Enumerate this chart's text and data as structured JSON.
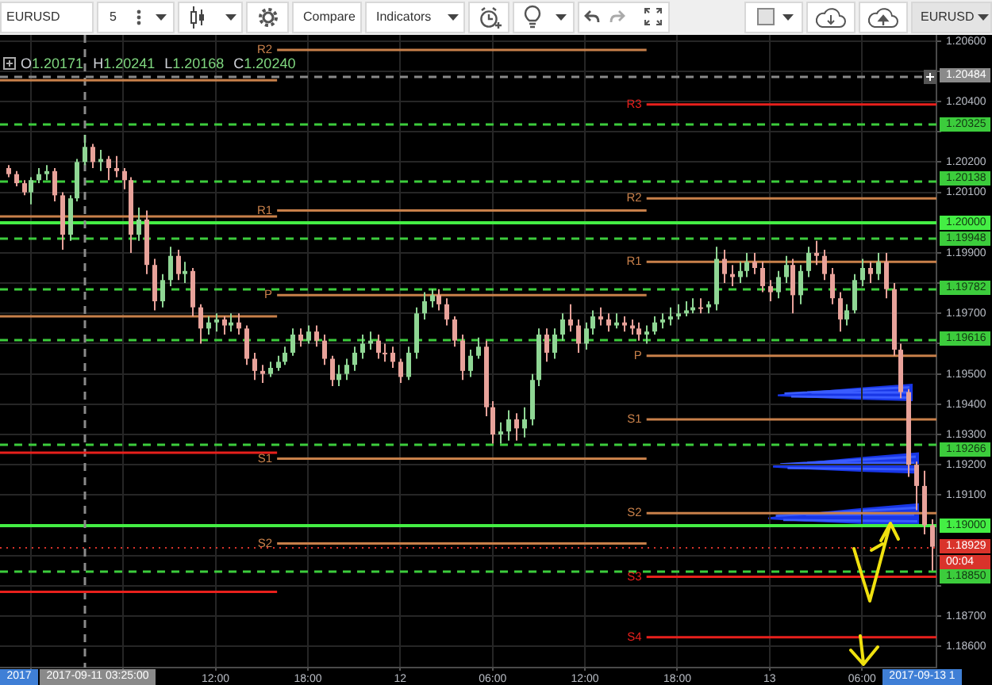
{
  "chart_data": {
    "type": "candlestick",
    "title": "EURUSD",
    "annotations": [
      "5",
      "Compare",
      "Indicators",
      "EURUSD",
      "O1.20171",
      "H1.20241",
      "L1.20168",
      "C1.20240",
      "00:04",
      "2017",
      "2017-09-13 1"
    ],
    "x": [
      "2017-09-10T22:30",
      "2017-09-10T23:00",
      "2017-09-10T23:30",
      "2017-09-11T00:00",
      "2017-09-11T00:30",
      "2017-09-11T01:00",
      "2017-09-11T01:30",
      "2017-09-11T02:00",
      "2017-09-11T02:30",
      "2017-09-11T03:00",
      "2017-09-11T03:30",
      "2017-09-11T04:00",
      "2017-09-11T04:30",
      "2017-09-11T05:00",
      "2017-09-11T05:30",
      "2017-09-11T06:00",
      "2017-09-11T06:30",
      "2017-09-11T07:00",
      "2017-09-11T07:30",
      "2017-09-11T08:00",
      "2017-09-11T08:30",
      "2017-09-11T09:00",
      "2017-09-11T09:30",
      "2017-09-11T10:00",
      "2017-09-11T10:30",
      "2017-09-11T11:00",
      "2017-09-11T11:30",
      "2017-09-11T12:00",
      "2017-09-11T12:30",
      "2017-09-11T13:00",
      "2017-09-11T13:30",
      "2017-09-11T14:00",
      "2017-09-11T14:30",
      "2017-09-11T15:00",
      "2017-09-11T15:30",
      "2017-09-11T16:00",
      "2017-09-11T16:30",
      "2017-09-11T17:00",
      "2017-09-11T17:30",
      "2017-09-11T18:00",
      "2017-09-11T18:30",
      "2017-09-11T19:00",
      "2017-09-11T19:30",
      "2017-09-11T20:00",
      "2017-09-11T20:30",
      "2017-09-11T21:00",
      "2017-09-11T21:30",
      "2017-09-11T22:00",
      "2017-09-11T22:30",
      "2017-09-11T23:00",
      "2017-09-11T23:30",
      "2017-09-12T00:00",
      "2017-09-12T00:30",
      "2017-09-12T01:00",
      "2017-09-12T01:30",
      "2017-09-12T02:00",
      "2017-09-12T02:30",
      "2017-09-12T03:00",
      "2017-09-12T03:30",
      "2017-09-12T04:00",
      "2017-09-12T04:30",
      "2017-09-12T05:00",
      "2017-09-12T05:30",
      "2017-09-12T06:00",
      "2017-09-12T06:30",
      "2017-09-12T07:00",
      "2017-09-12T07:30",
      "2017-09-12T08:00",
      "2017-09-12T08:30",
      "2017-09-12T09:00",
      "2017-09-12T09:30",
      "2017-09-12T10:00",
      "2017-09-12T10:30",
      "2017-09-12T11:00",
      "2017-09-12T11:30",
      "2017-09-12T12:00",
      "2017-09-12T12:30",
      "2017-09-12T13:00",
      "2017-09-12T13:30",
      "2017-09-12T14:00",
      "2017-09-12T14:30",
      "2017-09-12T15:00",
      "2017-09-12T15:30",
      "2017-09-12T16:00",
      "2017-09-12T16:30",
      "2017-09-12T17:00",
      "2017-09-12T17:30",
      "2017-09-12T18:00",
      "2017-09-12T18:30",
      "2017-09-12T19:00",
      "2017-09-12T19:30",
      "2017-09-12T20:00",
      "2017-09-12T20:30",
      "2017-09-12T21:00",
      "2017-09-12T21:30",
      "2017-09-12T22:00",
      "2017-09-12T22:30",
      "2017-09-12T23:00",
      "2017-09-12T23:30",
      "2017-09-13T00:00",
      "2017-09-13T00:30",
      "2017-09-13T01:00",
      "2017-09-13T01:30",
      "2017-09-13T02:00",
      "2017-09-13T02:30",
      "2017-09-13T03:00",
      "2017-09-13T03:30",
      "2017-09-13T04:00",
      "2017-09-13T04:30",
      "2017-09-13T05:00",
      "2017-09-13T05:30",
      "2017-09-13T06:00",
      "2017-09-13T06:30",
      "2017-09-13T07:00",
      "2017-09-13T07:30",
      "2017-09-13T08:00",
      "2017-09-13T08:30",
      "2017-09-13T09:00",
      "2017-09-13T09:30",
      "2017-09-13T10:00",
      "2017-09-13T10:30"
    ],
    "ohlc": [
      [
        1.2018,
        1.2019,
        1.2015,
        1.2016
      ],
      [
        1.2016,
        1.2017,
        1.2012,
        1.2013
      ],
      [
        1.2013,
        1.2014,
        1.2009,
        1.201
      ],
      [
        1.201,
        1.2015,
        1.2006,
        1.2014
      ],
      [
        1.2014,
        1.2018,
        1.2013,
        1.2016
      ],
      [
        1.2016,
        1.2019,
        1.2014,
        1.2017
      ],
      [
        1.2017,
        1.2018,
        1.2007,
        1.2009
      ],
      [
        1.2009,
        1.201,
        1.1991,
        1.1996
      ],
      [
        1.1996,
        1.2009,
        1.1994,
        1.2008
      ],
      [
        1.2008,
        1.2021,
        1.2007,
        1.202
      ],
      [
        1.202,
        1.2029,
        1.2019,
        1.2025
      ],
      [
        1.2025,
        1.2026,
        1.2018,
        1.202
      ],
      [
        1.202,
        1.2024,
        1.2017,
        1.2021
      ],
      [
        1.2021,
        1.2022,
        1.2014,
        1.2018
      ],
      [
        1.2018,
        1.2022,
        1.2015,
        1.2017
      ],
      [
        1.2017,
        1.2018,
        1.2011,
        1.2014
      ],
      [
        1.2014,
        1.2015,
        1.199,
        1.1996
      ],
      [
        1.1996,
        1.2005,
        1.1994,
        1.2001
      ],
      [
        1.2001,
        1.2004,
        1.1983,
        1.1986
      ],
      [
        1.1986,
        1.1988,
        1.1971,
        1.1974
      ],
      [
        1.1974,
        1.1983,
        1.1972,
        1.1981
      ],
      [
        1.1981,
        1.1992,
        1.1979,
        1.1989
      ],
      [
        1.1989,
        1.1991,
        1.1981,
        1.1983
      ],
      [
        1.1983,
        1.1987,
        1.198,
        1.1984
      ],
      [
        1.1984,
        1.1985,
        1.1969,
        1.1972
      ],
      [
        1.1972,
        1.1973,
        1.196,
        1.1965
      ],
      [
        1.1965,
        1.1969,
        1.1963,
        1.1967
      ],
      [
        1.1967,
        1.197,
        1.1964,
        1.1968
      ],
      [
        1.1968,
        1.1969,
        1.1963,
        1.1966
      ],
      [
        1.1966,
        1.197,
        1.1964,
        1.1967
      ],
      [
        1.1967,
        1.197,
        1.1963,
        1.1965
      ],
      [
        1.1965,
        1.1966,
        1.1953,
        1.1955
      ],
      [
        1.1955,
        1.1957,
        1.1948,
        1.1951
      ],
      [
        1.1951,
        1.1953,
        1.1947,
        1.195
      ],
      [
        1.195,
        1.1954,
        1.1949,
        1.1952
      ],
      [
        1.1952,
        1.1956,
        1.1951,
        1.1954
      ],
      [
        1.1954,
        1.1959,
        1.1953,
        1.1957
      ],
      [
        1.1957,
        1.1965,
        1.1956,
        1.1963
      ],
      [
        1.1963,
        1.1965,
        1.1959,
        1.1961
      ],
      [
        1.1961,
        1.1966,
        1.196,
        1.1964
      ],
      [
        1.1964,
        1.1966,
        1.1959,
        1.1961
      ],
      [
        1.1961,
        1.1963,
        1.1953,
        1.1955
      ],
      [
        1.1955,
        1.1956,
        1.1946,
        1.1948
      ],
      [
        1.1948,
        1.1953,
        1.1946,
        1.195
      ],
      [
        1.195,
        1.1955,
        1.1948,
        1.1953
      ],
      [
        1.1953,
        1.1959,
        1.1951,
        1.1957
      ],
      [
        1.1957,
        1.1963,
        1.1955,
        1.196
      ],
      [
        1.196,
        1.1964,
        1.1958,
        1.1961
      ],
      [
        1.1961,
        1.1963,
        1.1955,
        1.1957
      ],
      [
        1.1957,
        1.196,
        1.1954,
        1.1957
      ],
      [
        1.1957,
        1.1959,
        1.1952,
        1.1954
      ],
      [
        1.1954,
        1.1955,
        1.1947,
        1.1949
      ],
      [
        1.1949,
        1.1959,
        1.1948,
        1.1957
      ],
      [
        1.1957,
        1.1972,
        1.1955,
        1.197
      ],
      [
        1.197,
        1.1977,
        1.1968,
        1.1974
      ],
      [
        1.1974,
        1.1978,
        1.1972,
        1.1976
      ],
      [
        1.1976,
        1.1978,
        1.1971,
        1.1973
      ],
      [
        1.1973,
        1.1975,
        1.1966,
        1.1968
      ],
      [
        1.1968,
        1.1969,
        1.1959,
        1.1961
      ],
      [
        1.1961,
        1.1963,
        1.1948,
        1.1951
      ],
      [
        1.1951,
        1.1958,
        1.1949,
        1.1956
      ],
      [
        1.1956,
        1.1962,
        1.1955,
        1.1959
      ],
      [
        1.1959,
        1.1961,
        1.1936,
        1.1939
      ],
      [
        1.1939,
        1.1941,
        1.1927,
        1.193
      ],
      [
        1.193,
        1.1934,
        1.1927,
        1.1931
      ],
      [
        1.1931,
        1.1938,
        1.1928,
        1.1935
      ],
      [
        1.1935,
        1.1937,
        1.1928,
        1.1932
      ],
      [
        1.1932,
        1.1939,
        1.1929,
        1.1935
      ],
      [
        1.1935,
        1.195,
        1.1933,
        1.1948
      ],
      [
        1.1948,
        1.1965,
        1.1946,
        1.1963
      ],
      [
        1.1963,
        1.1965,
        1.1954,
        1.1957
      ],
      [
        1.1957,
        1.1965,
        1.1955,
        1.1963
      ],
      [
        1.1963,
        1.197,
        1.1961,
        1.1968
      ],
      [
        1.1968,
        1.1973,
        1.1964,
        1.1966
      ],
      [
        1.1966,
        1.1968,
        1.1957,
        1.196
      ],
      [
        1.196,
        1.1967,
        1.1958,
        1.1965
      ],
      [
        1.1965,
        1.1971,
        1.1963,
        1.1969
      ],
      [
        1.1969,
        1.1972,
        1.1966,
        1.1968
      ],
      [
        1.1968,
        1.197,
        1.1964,
        1.1966
      ],
      [
        1.1966,
        1.197,
        1.1965,
        1.1967
      ],
      [
        1.1967,
        1.1969,
        1.1964,
        1.1966
      ],
      [
        1.1966,
        1.1968,
        1.1963,
        1.1965
      ],
      [
        1.1965,
        1.1967,
        1.1961,
        1.1963
      ],
      [
        1.1963,
        1.1966,
        1.196,
        1.1964
      ],
      [
        1.1964,
        1.1969,
        1.1963,
        1.1967
      ],
      [
        1.1967,
        1.197,
        1.1965,
        1.1968
      ],
      [
        1.1968,
        1.1972,
        1.1966,
        1.1969
      ],
      [
        1.1969,
        1.1973,
        1.1968,
        1.197
      ],
      [
        1.197,
        1.1974,
        1.1969,
        1.1971
      ],
      [
        1.1971,
        1.1975,
        1.197,
        1.1972
      ],
      [
        1.1972,
        1.1975,
        1.197,
        1.1972
      ],
      [
        1.1972,
        1.1974,
        1.197,
        1.1973
      ],
      [
        1.1973,
        1.1992,
        1.1971,
        1.1988
      ],
      [
        1.1988,
        1.1991,
        1.198,
        1.1983
      ],
      [
        1.1983,
        1.1986,
        1.1979,
        1.1982
      ],
      [
        1.1982,
        1.1987,
        1.198,
        1.1984
      ],
      [
        1.1984,
        1.199,
        1.1982,
        1.1987
      ],
      [
        1.1987,
        1.199,
        1.1983,
        1.1985
      ],
      [
        1.1985,
        1.1987,
        1.1977,
        1.1979
      ],
      [
        1.1979,
        1.1981,
        1.1974,
        1.1977
      ],
      [
        1.1977,
        1.1984,
        1.1975,
        1.1982
      ],
      [
        1.1982,
        1.1989,
        1.198,
        1.1986
      ],
      [
        1.1986,
        1.1988,
        1.197,
        1.1976
      ],
      [
        1.1976,
        1.1986,
        1.1973,
        1.1984
      ],
      [
        1.1984,
        1.1992,
        1.1982,
        1.199
      ],
      [
        1.199,
        1.1994,
        1.1986,
        1.1989
      ],
      [
        1.1989,
        1.1991,
        1.1981,
        1.1983
      ],
      [
        1.1983,
        1.1985,
        1.1973,
        1.1975
      ],
      [
        1.1975,
        1.1977,
        1.1964,
        1.1968
      ],
      [
        1.1968,
        1.1973,
        1.1966,
        1.1971
      ],
      [
        1.1971,
        1.1983,
        1.197,
        1.1981
      ],
      [
        1.1981,
        1.1988,
        1.1979,
        1.1985
      ],
      [
        1.1985,
        1.1987,
        1.198,
        1.1983
      ],
      [
        1.1983,
        1.199,
        1.1981,
        1.1987
      ],
      [
        1.1987,
        1.199,
        1.1975,
        1.1978
      ],
      [
        1.1978,
        1.198,
        1.1956,
        1.1958
      ],
      [
        1.1958,
        1.196,
        1.1942,
        1.1944
      ],
      [
        1.1944,
        1.1945,
        1.1916,
        1.192
      ],
      [
        1.192,
        1.1921,
        1.1905,
        1.1913
      ],
      [
        1.1913,
        1.1918,
        1.1897,
        1.19
      ],
      [
        1.19,
        1.1902,
        1.1885,
        1.18929
      ]
    ],
    "colors": [
      "#e8a29a",
      "#e8a29a",
      "#e8a29a",
      "#8fd694",
      "#8fd694",
      "#8fd694",
      "#e8a29a",
      "#e8a29a",
      "#8fd694",
      "#8fd694",
      "#8fd694",
      "#e8a29a",
      "#8fd694",
      "#e8a29a",
      "#e8a29a",
      "#e8a29a",
      "#e8a29a",
      "#8fd694",
      "#e8a29a",
      "#e8a29a",
      "#8fd694",
      "#8fd694",
      "#e8a29a",
      "#8fd694",
      "#e8a29a",
      "#e8a29a",
      "#8fd694",
      "#8fd694",
      "#e8a29a",
      "#8fd694",
      "#e8a29a",
      "#e8a29a",
      "#e8a29a",
      "#e8a29a",
      "#8fd694",
      "#8fd694",
      "#8fd694",
      "#8fd694",
      "#e8a29a",
      "#8fd694",
      "#e8a29a",
      "#e8a29a",
      "#e8a29a",
      "#8fd694",
      "#8fd694",
      "#8fd694",
      "#8fd694",
      "#8fd694",
      "#e8a29a",
      "#e8a29a",
      "#e8a29a",
      "#e8a29a",
      "#8fd694",
      "#8fd694",
      "#8fd694",
      "#8fd694",
      "#e8a29a",
      "#e8a29a",
      "#e8a29a",
      "#e8a29a",
      "#8fd694",
      "#8fd694",
      "#e8a29a",
      "#e8a29a",
      "#8fd694",
      "#8fd694",
      "#e8a29a",
      "#8fd694",
      "#8fd694",
      "#8fd694",
      "#e8a29a",
      "#8fd694",
      "#8fd694",
      "#e8a29a",
      "#e8a29a",
      "#8fd694",
      "#8fd694",
      "#e8a29a",
      "#e8a29a",
      "#8fd694",
      "#e8a29a",
      "#e8a29a",
      "#e8a29a",
      "#8fd694",
      "#8fd694",
      "#8fd694",
      "#8fd694",
      "#8fd694",
      "#8fd694",
      "#8fd694",
      "#e8a29a",
      "#8fd694",
      "#8fd694",
      "#e8a29a",
      "#e8a29a",
      "#8fd694",
      "#8fd694",
      "#e8a29a",
      "#e8a29a",
      "#e8a29a",
      "#8fd694",
      "#8fd694",
      "#e8a29a",
      "#8fd694",
      "#8fd694",
      "#e8a29a",
      "#e8a29a",
      "#e8a29a",
      "#e8a29a",
      "#8fd694",
      "#8fd694",
      "#8fd694",
      "#e8a29a",
      "#8fd694",
      "#e8a29a",
      "#e8a29a",
      "#e8a29a",
      "#e8a29a",
      "#e8a29a",
      "#e8a29a",
      "#e8a29a"
    ],
    "series": [
      {
        "type": "line",
        "color": "#c8804a",
        "x": [
          "2017-09-10T22:00",
          "2017-09-11T16:00"
        ],
        "values": [
          1.2047,
          1.2047
        ]
      },
      {
        "type": "line",
        "color": "#c8804a",
        "x": [
          "2017-09-10T22:00",
          "2017-09-11T16:00"
        ],
        "values": [
          1.2002,
          1.2002
        ]
      },
      {
        "type": "line",
        "color": "#c8804a",
        "x": [
          "2017-09-10T22:00",
          "2017-09-11T16:00"
        ],
        "values": [
          1.1969,
          1.1969
        ]
      },
      {
        "type": "line",
        "color": "#e8201c",
        "x": [
          "2017-09-10T22:00",
          "2017-09-11T16:00"
        ],
        "values": [
          1.1924,
          1.1924
        ]
      },
      {
        "type": "line",
        "color": "#e8201c",
        "x": [
          "2017-09-10T22:00",
          "2017-09-11T16:00"
        ],
        "values": [
          1.1878,
          1.1878
        ]
      },
      {
        "type": "line",
        "name": "R2",
        "color": "#c8804a",
        "x": [
          "2017-09-11T16:00",
          "2017-09-12T16:00"
        ],
        "values": [
          1.2057,
          1.2057
        ]
      },
      {
        "type": "line",
        "name": "R1",
        "color": "#c8804a",
        "x": [
          "2017-09-11T16:00",
          "2017-09-12T16:00"
        ],
        "values": [
          1.2004,
          1.2004
        ]
      },
      {
        "type": "line",
        "name": "P",
        "color": "#c8804a",
        "x": [
          "2017-09-11T16:00",
          "2017-09-12T16:00"
        ],
        "values": [
          1.1976,
          1.1976
        ]
      },
      {
        "type": "line",
        "name": "S1",
        "color": "#c8804a",
        "x": [
          "2017-09-11T16:00",
          "2017-09-12T16:00"
        ],
        "values": [
          1.1922,
          1.1922
        ]
      },
      {
        "type": "line",
        "name": "S2",
        "color": "#c8804a",
        "x": [
          "2017-09-11T16:00",
          "2017-09-12T16:00"
        ],
        "values": [
          1.1894,
          1.1894
        ]
      },
      {
        "type": "line",
        "name": "R3",
        "color": "#e8201c",
        "x": [
          "2017-09-12T16:00",
          "2017-09-13T10:50"
        ],
        "values": [
          1.2039,
          1.2039
        ]
      },
      {
        "type": "line",
        "name": "R2",
        "color": "#c8804a",
        "x": [
          "2017-09-12T16:00",
          "2017-09-13T10:50"
        ],
        "values": [
          1.2008,
          1.2008
        ]
      },
      {
        "type": "line",
        "name": "R1",
        "color": "#c8804a",
        "x": [
          "2017-09-12T16:00",
          "2017-09-13T10:50"
        ],
        "values": [
          1.1987,
          1.1987
        ]
      },
      {
        "type": "line",
        "name": "P",
        "color": "#c8804a",
        "x": [
          "2017-09-12T16:00",
          "2017-09-13T10:50"
        ],
        "values": [
          1.1956,
          1.1956
        ]
      },
      {
        "type": "line",
        "name": "S1",
        "color": "#c8804a",
        "x": [
          "2017-09-12T16:00",
          "2017-09-13T10:50"
        ],
        "values": [
          1.1935,
          1.1935
        ]
      },
      {
        "type": "line",
        "name": "S2",
        "color": "#c8804a",
        "x": [
          "2017-09-12T16:00",
          "2017-09-13T10:50"
        ],
        "values": [
          1.1904,
          1.1904
        ]
      },
      {
        "type": "line",
        "name": "S3",
        "color": "#e8201c",
        "x": [
          "2017-09-12T16:00",
          "2017-09-13T10:50"
        ],
        "values": [
          1.1883,
          1.1883
        ]
      },
      {
        "type": "line",
        "name": "S4",
        "color": "#e8201c",
        "x": [
          "2017-09-12T16:00",
          "2017-09-13T10:50"
        ],
        "values": [
          1.1863,
          1.1863
        ]
      }
    ],
    "ref_lines": [
      {
        "axis": "y",
        "value": 1.20325,
        "label": "1.20325",
        "color": "#3ccc3c",
        "line_style": "dashed"
      },
      {
        "axis": "y",
        "value": 1.20138,
        "label": "1.20138",
        "color": "#3ccc3c",
        "line_style": "dashed"
      },
      {
        "axis": "y",
        "value": 1.2,
        "label": "1.20000",
        "color": "#44ee44",
        "line_style": "solid"
      },
      {
        "axis": "y",
        "value": 1.19948,
        "label": "1.19948",
        "color": "#3ccc3c",
        "line_style": "dashed"
      },
      {
        "axis": "y",
        "value": 1.19782,
        "label": "1.19782",
        "color": "#3ccc3c",
        "line_style": "dashed"
      },
      {
        "axis": "y",
        "value": 1.19616,
        "label": "1.19616",
        "color": "#3ccc3c",
        "line_style": "dashed"
      },
      {
        "axis": "y",
        "value": 1.19266,
        "label": "1.19266",
        "color": "#3ccc3c",
        "line_style": "dashed"
      },
      {
        "axis": "y",
        "value": 1.19,
        "label": "1.19000",
        "color": "#44ee44",
        "line_style": "solid"
      },
      {
        "axis": "y",
        "value": 1.1885,
        "label": "1.18850",
        "color": "#3ccc3c",
        "line_style": "dashed"
      },
      {
        "axis": "y",
        "value": 1.18929,
        "label": "1.18929",
        "color": "#d9332b",
        "line_style": "dotted"
      },
      {
        "axis": "y",
        "value": 1.20484,
        "label": "1.20484",
        "color": "#8a8a8a",
        "line_style": "dashed"
      },
      {
        "axis": "x",
        "value": "2017-09-11T03:25",
        "label": "2017-09-11 03:25:00",
        "color": "#8a8a8a",
        "line_style": "dashed"
      }
    ],
    "xlim": [
      "2017-09-10T22:00",
      "2017-09-13T10:50"
    ],
    "xticks": [
      {
        "value": "2017-09-11",
        "label": null
      },
      {
        "value": "2017-09-11T06:00",
        "label": null
      },
      {
        "value": "2017-09-11T12:00",
        "label": "12:00"
      },
      {
        "value": "2017-09-11T18:00",
        "label": "18:00"
      },
      {
        "value": "2017-09-12",
        "label": "12"
      },
      {
        "value": "2017-09-12T06:00",
        "label": "06:00"
      },
      {
        "value": "2017-09-12T12:00",
        "label": "12:00"
      },
      {
        "value": "2017-09-12T18:00",
        "label": "18:00"
      },
      {
        "value": "2017-09-13",
        "label": "13"
      },
      {
        "value": "2017-09-13T06:00",
        "label": "06:00"
      }
    ],
    "ylim": [
      1.1853,
      1.2062
    ],
    "yticks": [
      {
        "value": 1.186,
        "label": "1.18600"
      },
      {
        "value": 1.187,
        "label": "1.18700"
      },
      {
        "value": 1.188,
        "label": null
      },
      {
        "value": 1.189,
        "label": null
      },
      {
        "value": 1.191,
        "label": "1.19100"
      },
      {
        "value": 1.192,
        "label": "1.19200"
      },
      {
        "value": 1.193,
        "label": "1.19300"
      },
      {
        "value": 1.194,
        "label": "1.19400"
      },
      {
        "value": 1.195,
        "label": "1.19500"
      },
      {
        "value": 1.196,
        "label": null
      },
      {
        "value": 1.197,
        "label": "1.19700"
      },
      {
        "value": 1.198,
        "label": null
      },
      {
        "value": 1.199,
        "label": "1.19900"
      },
      {
        "value": 1.201,
        "label": "1.20100"
      },
      {
        "value": 1.202,
        "label": "1.20200"
      },
      {
        "value": 1.203,
        "label": null
      },
      {
        "value": 1.204,
        "label": "1.20400"
      },
      {
        "value": 1.205,
        "label": null
      },
      {
        "value": 1.206,
        "label": "1.20600"
      }
    ],
    "grid": true,
    "legend": false
  }
}
